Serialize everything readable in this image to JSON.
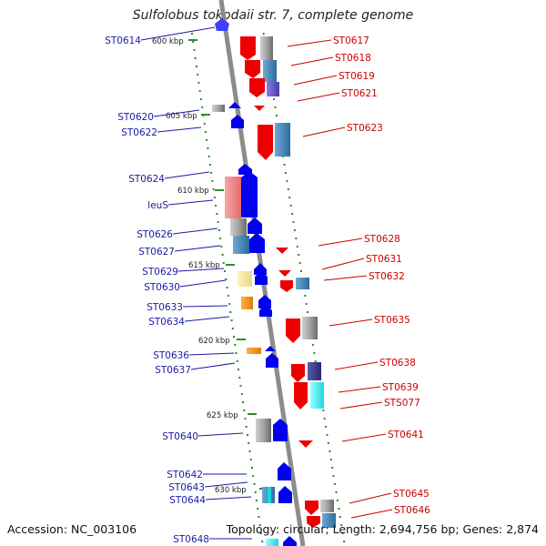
{
  "title": "Sulfolobus tokodaii str. 7, complete genome",
  "footer": {
    "accession": "Accession: NC_003106",
    "summary": "Topology: circular; Length: 2,694,756 bp; Genes: 2,874"
  },
  "colors": {
    "backbone": "#8c8c8c",
    "forward_strand": "#0000ee",
    "reverse_strand": "#ee0000",
    "left_label": "#1a1aa6",
    "right_label": "#cc0000",
    "tick": "#2e8b2e"
  },
  "kbp_marks": [
    {
      "text": "600 kbp"
    },
    {
      "text": "605 kbp"
    },
    {
      "text": "610 kbp"
    },
    {
      "text": "615 kbp"
    },
    {
      "text": "620 kbp"
    },
    {
      "text": "625 kbp"
    },
    {
      "text": "630 kbp"
    }
  ],
  "left_labels": [
    {
      "text": "ST0614"
    },
    {
      "text": "ST0620"
    },
    {
      "text": "ST0622"
    },
    {
      "text": "ST0624"
    },
    {
      "text": "leuS"
    },
    {
      "text": "ST0626"
    },
    {
      "text": "ST0627"
    },
    {
      "text": "ST0629"
    },
    {
      "text": "ST0630"
    },
    {
      "text": "ST0633"
    },
    {
      "text": "ST0634"
    },
    {
      "text": "ST0636"
    },
    {
      "text": "ST0637"
    },
    {
      "text": "ST0640"
    },
    {
      "text": "ST0642"
    },
    {
      "text": "ST0643"
    },
    {
      "text": "ST0644"
    },
    {
      "text": "ST0648"
    }
  ],
  "right_labels": [
    {
      "text": "ST0617"
    },
    {
      "text": "ST0618"
    },
    {
      "text": "ST0619"
    },
    {
      "text": "ST0621"
    },
    {
      "text": "ST0623"
    },
    {
      "text": "ST0628"
    },
    {
      "text": "ST0631"
    },
    {
      "text": "ST0632"
    },
    {
      "text": "ST0635"
    },
    {
      "text": "ST0638"
    },
    {
      "text": "ST0639"
    },
    {
      "text": "STS077"
    },
    {
      "text": "ST0641"
    },
    {
      "text": "ST0645"
    },
    {
      "text": "ST0646"
    }
  ]
}
